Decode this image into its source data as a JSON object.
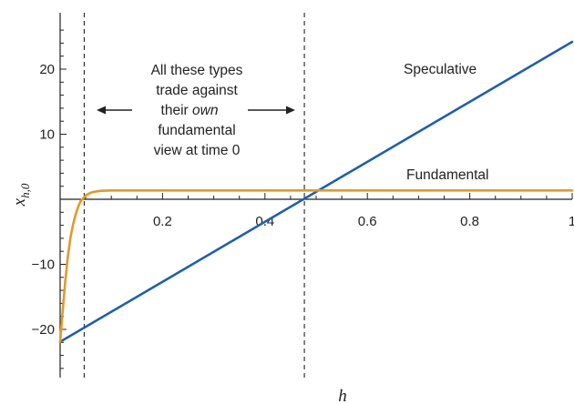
{
  "chart_data": {
    "type": "line",
    "title": "",
    "xlabel": "h",
    "ylabel": "x_{h,0}",
    "ylabel_parts": {
      "main": "x",
      "sub": "h,0"
    },
    "xlim": [
      0,
      1
    ],
    "ylim": [
      -26,
      27
    ],
    "x_ticks": [
      0.2,
      0.4,
      0.6,
      0.8,
      1
    ],
    "x_tick_labels": [
      "0.2",
      "0.4",
      "0.6",
      "0.8",
      "1"
    ],
    "y_ticks": [
      -20,
      -10,
      10,
      20
    ],
    "y_tick_labels": [
      "−20",
      "−10",
      "10",
      "20"
    ],
    "grid": false,
    "series": [
      {
        "name": "Speculative",
        "color": "#1f5fae",
        "x": [
          0,
          1
        ],
        "y": [
          -21.9,
          24.2
        ]
      },
      {
        "name": "Fundamental",
        "color": "#e09a2a",
        "x": [
          0,
          0.005,
          0.01,
          0.015,
          0.02,
          0.025,
          0.03,
          0.035,
          0.04,
          0.05,
          0.06,
          0.07,
          0.08,
          0.1,
          0.12,
          0.15,
          0.2,
          0.3,
          0.5,
          0.7,
          1
        ],
        "y": [
          -21.9,
          -17.2,
          -12.6,
          -8.9,
          -6.0,
          -4.0,
          -2.4,
          -1.2,
          -0.3,
          0.6,
          1.0,
          1.2,
          1.3,
          1.35,
          1.35,
          1.35,
          1.35,
          1.35,
          1.35,
          1.35,
          1.35
        ]
      }
    ],
    "vertical_lines": [
      {
        "x": 0.047,
        "style": "dashed"
      },
      {
        "x": 0.477,
        "style": "dashed"
      }
    ],
    "annotations": {
      "region_text": [
        "All these types",
        "trade against",
        "their own",
        "fundamental",
        "view at time 0"
      ],
      "region_text_emphasis": "own",
      "speculative_label": "Speculative",
      "fundamental_label": "Fundamental"
    }
  }
}
